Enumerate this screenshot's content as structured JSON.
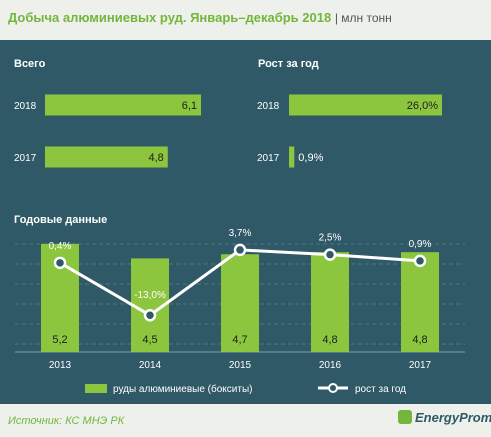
{
  "header": {
    "title": "Добыча алюминиевых руд. Январь–декабрь 2018",
    "unit": "млн тонн"
  },
  "footer": {
    "source": "Источник: КС МНЭ РК",
    "brand": "EnergyProm"
  },
  "colors": {
    "background": "#2f5966",
    "bar": "#8cc63f",
    "line": "#ffffff",
    "accent_text": "#74b63c"
  },
  "chart_data": [
    {
      "type": "bar",
      "title": "Всего",
      "categories": [
        "2018",
        "2017"
      ],
      "values": [
        6.1,
        4.8
      ],
      "value_labels": [
        "6,1",
        "4,8"
      ],
      "xlim": [
        0,
        6.1
      ]
    },
    {
      "type": "bar",
      "title": "Рост за год",
      "categories": [
        "2018",
        "2017"
      ],
      "values": [
        26.0,
        0.9
      ],
      "value_labels": [
        "26,0%",
        "0,9%"
      ],
      "xlim": [
        0,
        26.0
      ]
    },
    {
      "type": "bar",
      "title": "Годовые данные",
      "categories": [
        "2013",
        "2014",
        "2015",
        "2016",
        "2017"
      ],
      "series": [
        {
          "name": "руды алюминиевые (бокситы)",
          "type": "bar",
          "values": [
            5.2,
            4.5,
            4.7,
            4.8,
            4.8
          ],
          "labels": [
            "5,2",
            "4,5",
            "4,7",
            "4,8",
            "4,8"
          ]
        },
        {
          "name": "рост за год",
          "type": "line",
          "values": [
            0.4,
            -13.0,
            3.7,
            2.5,
            0.9
          ],
          "labels": [
            "0,4%",
            "-13,0%",
            "3,7%",
            "2,5%",
            "0,9%"
          ]
        }
      ],
      "legend": "bottom",
      "grid": true
    }
  ]
}
